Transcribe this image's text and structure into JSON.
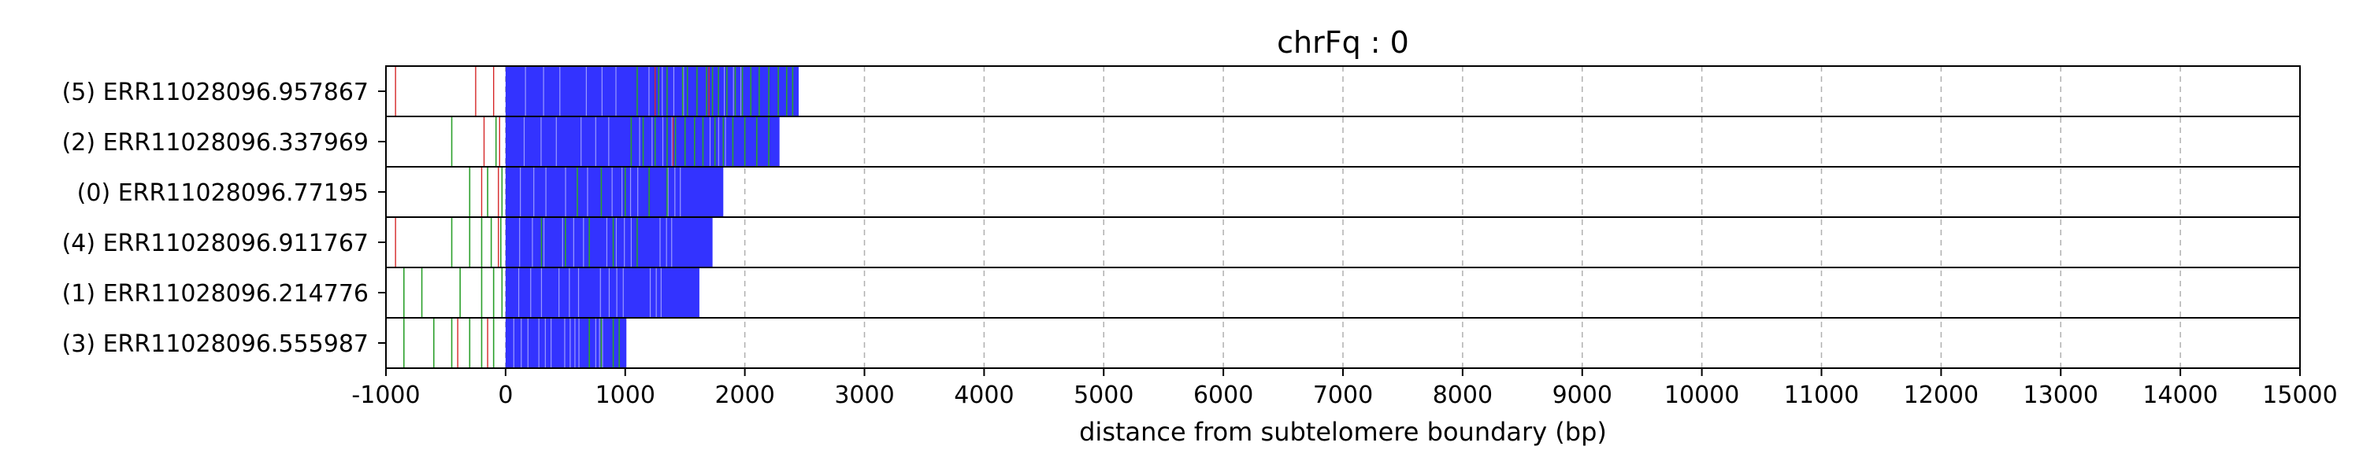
{
  "chart_data": {
    "type": "bar",
    "title": "chrFq : 0",
    "xlabel": "distance from subtelomere boundary (bp)",
    "ylabel": "",
    "xlim": [
      -1000,
      15000
    ],
    "xticks": [
      -1000,
      0,
      1000,
      2000,
      3000,
      4000,
      5000,
      6000,
      7000,
      8000,
      9000,
      10000,
      11000,
      12000,
      13000,
      14000,
      15000
    ],
    "grid": "vertical dashed",
    "colors": {
      "repeat_fill": "#3333ff",
      "green_mark": "#2ca02c",
      "red_mark": "#d62728",
      "grid": "#b0b0b0"
    },
    "rows": [
      {
        "label": "(5) ERR11028096.957867",
        "start": 0,
        "end": 2450,
        "green": [
          1100,
          1280,
          1350,
          1480,
          1520,
          1600,
          1680,
          1730,
          1780,
          1850,
          1920,
          1980,
          2050,
          2120,
          2200,
          2280,
          2350,
          2400
        ],
        "red": [
          -920,
          -250,
          -100,
          1250,
          1700
        ]
      },
      {
        "label": "(2) ERR11028096.337969",
        "start": 0,
        "end": 2290,
        "green": [
          -450,
          -80,
          1050,
          1150,
          1250,
          1350,
          1420,
          1500,
          1580,
          1650,
          1750,
          1820,
          1900,
          2000,
          2100,
          2200
        ],
        "red": [
          -180,
          -50,
          1400
        ]
      },
      {
        "label": "(0) ERR11028096.77195",
        "start": 0,
        "end": 1820,
        "green": [
          -300,
          -150,
          -30,
          600,
          800,
          1000,
          1200,
          1350
        ],
        "red": [
          -200,
          -60
        ]
      },
      {
        "label": "(4) ERR11028096.911767",
        "start": 0,
        "end": 1730,
        "green": [
          -450,
          -300,
          -200,
          -120,
          -40,
          300,
          500,
          700,
          900,
          1100
        ],
        "red": [
          -920,
          -60
        ]
      },
      {
        "label": "(1) ERR11028096.214776",
        "start": 0,
        "end": 1620,
        "green": [
          -850,
          -700,
          -380,
          -200,
          -100,
          -30
        ],
        "red": []
      },
      {
        "label": "(3) ERR11028096.555987",
        "start": 0,
        "end": 1010,
        "green": [
          -850,
          -600,
          -450,
          -300,
          -200,
          -100,
          700,
          800,
          900,
          950
        ],
        "red": [
          -400,
          -150
        ]
      }
    ]
  }
}
